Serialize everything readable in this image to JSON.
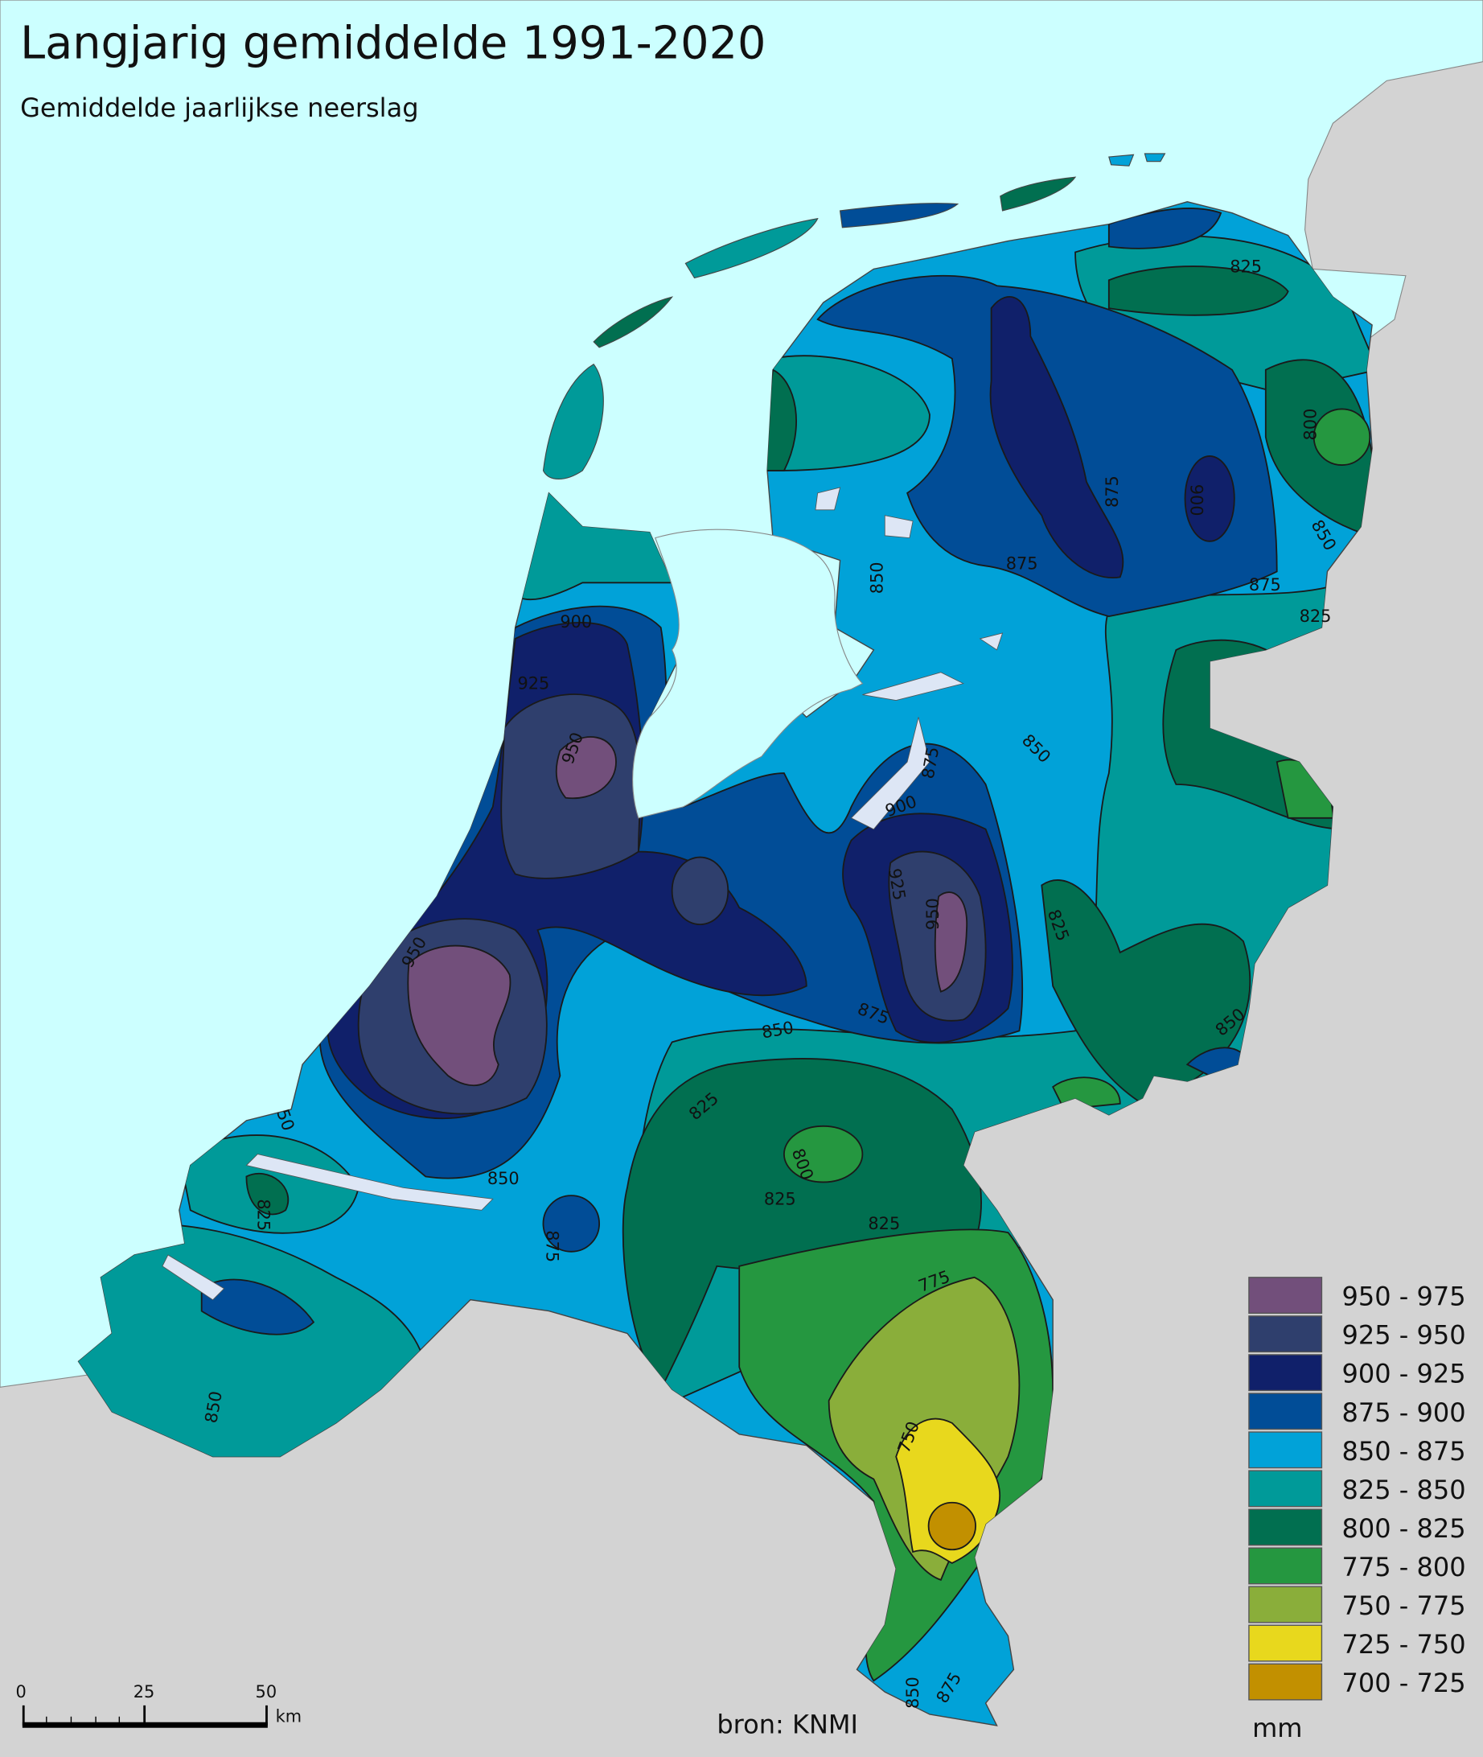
{
  "header": {
    "title": "Langjarig gemiddelde 1991-2020",
    "subtitle": "Gemiddelde jaarlijkse neerslag"
  },
  "colors": {
    "sea": "#ccffff",
    "foreign_land": "#d3d3d3"
  },
  "legend": {
    "unit": "mm",
    "classes": [
      {
        "label": "950 - 975",
        "color": "#724f7b"
      },
      {
        "label": "925 - 950",
        "color": "#2f3f6d"
      },
      {
        "label": "900 - 925",
        "color": "#10206a"
      },
      {
        "label": "875 - 900",
        "color": "#014d97"
      },
      {
        "label": "850 - 875",
        "color": "#01a2d8"
      },
      {
        "label": "825 - 850",
        "color": "#009a99"
      },
      {
        "label": "800 - 825",
        "color": "#016f50"
      },
      {
        "label": "775 - 800",
        "color": "#259740"
      },
      {
        "label": "750 - 775",
        "color": "#8aae3a"
      },
      {
        "label": "725 - 750",
        "color": "#e8d81d"
      },
      {
        "label": "700 - 725",
        "color": "#c29000"
      }
    ]
  },
  "contour_labels": [
    "825",
    "800",
    "850",
    "875",
    "900",
    "875",
    "850",
    "825",
    "875",
    "900",
    "925",
    "950",
    "950",
    "850",
    "875",
    "825",
    "900",
    "950",
    "925",
    "875",
    "850",
    "825",
    "800",
    "825",
    "775",
    "750",
    "850",
    "875",
    "825",
    "850",
    "50",
    "825",
    "875",
    "850",
    "850"
  ],
  "scalebar": {
    "ticks": [
      "0",
      "25",
      "50"
    ],
    "unit": "km"
  },
  "source": "bron: KNMI"
}
